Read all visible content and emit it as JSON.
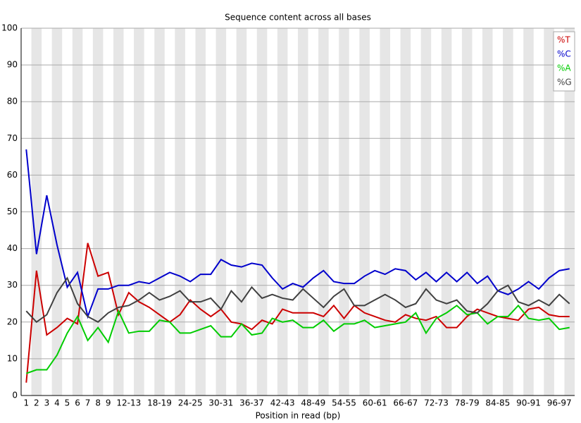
{
  "chart_data": {
    "type": "line",
    "title": "Sequence content across all bases",
    "x_label": "Position in read (bp)",
    "categories": [
      "1",
      "2",
      "3",
      "4",
      "5",
      "6",
      "7",
      "8",
      "9",
      null,
      "12-13",
      null,
      null,
      "18-19",
      null,
      null,
      "24-25",
      null,
      null,
      "30-31",
      null,
      null,
      "36-37",
      null,
      null,
      "42-43",
      null,
      null,
      "48-49",
      null,
      null,
      "54-55",
      null,
      null,
      "60-61",
      null,
      null,
      "66-67",
      null,
      null,
      "72-73",
      null,
      null,
      "78-79",
      null,
      null,
      "84-85",
      null,
      null,
      "90-91",
      null,
      null,
      "96-97",
      null
    ],
    "series": [
      {
        "name": "%T",
        "color": "#cc0000",
        "values": [
          3.5,
          34,
          16.5,
          18.5,
          21,
          19.5,
          41.5,
          32.5,
          33.5,
          22,
          28,
          25.5,
          24,
          22,
          20,
          22,
          26,
          23.5,
          21.5,
          23.5,
          20,
          19.5,
          18,
          20.5,
          19.5,
          23.5,
          22.5,
          22.5,
          22.5,
          21.5,
          24.5,
          21,
          24.5,
          22.5,
          21.5,
          20.5,
          20,
          22,
          21,
          20.5,
          21.5,
          18.5,
          18.5,
          21.5,
          23.5,
          22.5,
          21.5,
          21,
          20.5,
          23.5,
          24,
          22,
          21.5,
          21.5
        ]
      },
      {
        "name": "%C",
        "color": "#0000cc",
        "values": [
          67,
          38.5,
          54.5,
          41,
          29.5,
          33.5,
          21.5,
          29,
          29,
          30,
          30,
          31,
          30.5,
          32,
          33.5,
          32.5,
          31,
          33,
          33,
          37,
          35.5,
          35,
          36,
          35.5,
          32,
          29,
          30.5,
          29.5,
          32,
          34,
          31,
          30.5,
          30.5,
          32.5,
          34,
          33,
          34.5,
          34,
          31.5,
          33.5,
          31,
          33.5,
          31,
          33.5,
          30.5,
          32.5,
          28.5,
          27.5,
          29,
          31,
          29,
          32,
          34,
          34.5
        ]
      },
      {
        "name": "%A",
        "color": "#00cc00",
        "values": [
          6,
          7,
          7,
          11,
          17,
          21.5,
          15,
          18.5,
          14.5,
          23,
          17,
          17.5,
          17.5,
          20.5,
          20,
          17,
          17,
          18,
          19,
          16,
          16,
          19.5,
          16.5,
          17,
          21,
          20,
          20.5,
          18.5,
          18.5,
          20.5,
          17.5,
          19.5,
          19.5,
          20.5,
          18.5,
          19,
          19.5,
          20,
          22.5,
          17,
          21,
          22.5,
          24.5,
          22,
          22.5,
          19.5,
          21.5,
          21.5,
          24.5,
          21,
          20.5,
          21,
          18,
          18.5
        ]
      },
      {
        "name": "%G",
        "color": "#404040",
        "values": [
          23,
          20,
          22,
          28,
          32,
          25,
          21.5,
          20,
          22.5,
          24,
          24.5,
          26,
          28,
          26,
          27,
          28.5,
          25.5,
          25.5,
          26.5,
          23.5,
          28.5,
          25.5,
          29.5,
          26.5,
          27.5,
          26.5,
          26,
          29,
          26.5,
          24,
          27,
          29,
          24.5,
          24.5,
          26,
          27.5,
          26,
          24,
          25,
          29,
          26,
          25,
          26,
          23,
          22.5,
          25,
          28.5,
          30,
          25.5,
          24.5,
          26,
          24.5,
          27.5,
          25
        ]
      }
    ],
    "ylim": [
      0,
      100
    ],
    "yticks": [
      0,
      10,
      20,
      30,
      40,
      50,
      60,
      70,
      80,
      90,
      100
    ],
    "grid": true,
    "legend": "top-right"
  }
}
